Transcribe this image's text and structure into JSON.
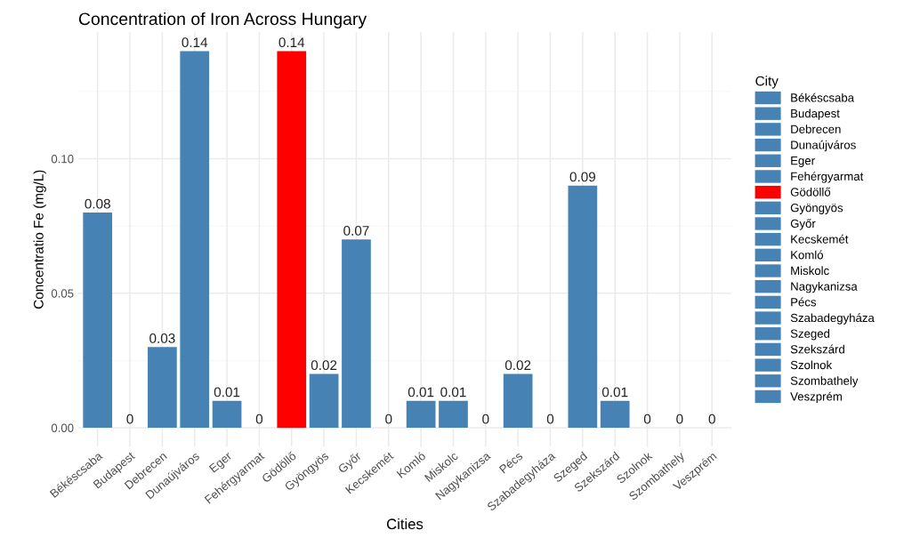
{
  "chart_data": {
    "type": "bar",
    "title": "Concentration of Iron Across Hungary",
    "xlabel": "Cities",
    "ylabel": "Concentratio Fe (mg/L)",
    "legend_title": "City",
    "categories": [
      "Békéscsaba",
      "Budapest",
      "Debrecen",
      "Dunaújváros",
      "Eger",
      "Fehérgyarmat",
      "Gödöllő",
      "Gyöngyös",
      "Győr",
      "Kecskemét",
      "Komló",
      "Miskolc",
      "Nagykanizsa",
      "Pécs",
      "Szabadegyháza",
      "Szeged",
      "Szekszárd",
      "Szolnok",
      "Szombathely",
      "Veszprém"
    ],
    "series": [
      {
        "name": "Békéscsaba",
        "color": "#4682b4",
        "values": [
          0.08,
          null,
          null,
          null,
          null,
          null,
          null,
          null,
          null,
          null,
          null,
          null,
          null,
          null,
          null,
          null,
          null,
          null,
          null,
          null
        ]
      },
      {
        "name": "Budapest",
        "color": "#4682b4",
        "values": [
          null,
          0,
          null,
          null,
          null,
          null,
          null,
          null,
          null,
          null,
          null,
          null,
          null,
          null,
          null,
          null,
          null,
          null,
          null,
          null
        ]
      },
      {
        "name": "Debrecen",
        "color": "#4682b4",
        "values": [
          null,
          null,
          0.03,
          null,
          null,
          null,
          null,
          null,
          null,
          null,
          null,
          null,
          null,
          null,
          null,
          null,
          null,
          null,
          null,
          null
        ]
      },
      {
        "name": "Dunaújváros",
        "color": "#4682b4",
        "values": [
          null,
          null,
          null,
          0.14,
          null,
          null,
          null,
          null,
          null,
          null,
          null,
          null,
          null,
          null,
          null,
          null,
          null,
          null,
          null,
          null
        ]
      },
      {
        "name": "Eger",
        "color": "#4682b4",
        "values": [
          null,
          null,
          null,
          null,
          0.01,
          null,
          null,
          null,
          null,
          null,
          null,
          null,
          null,
          null,
          null,
          null,
          null,
          null,
          null,
          null
        ]
      },
      {
        "name": "Fehérgyarmat",
        "color": "#4682b4",
        "values": [
          null,
          null,
          null,
          null,
          null,
          0,
          null,
          null,
          null,
          null,
          null,
          null,
          null,
          null,
          null,
          null,
          null,
          null,
          null,
          null
        ]
      },
      {
        "name": "Gödöllő",
        "color": "#ff0000",
        "values": [
          null,
          null,
          null,
          null,
          null,
          null,
          0.14,
          null,
          null,
          null,
          null,
          null,
          null,
          null,
          null,
          null,
          null,
          null,
          null,
          null
        ]
      },
      {
        "name": "Gyöngyös",
        "color": "#4682b4",
        "values": [
          null,
          null,
          null,
          null,
          null,
          null,
          null,
          0.02,
          null,
          null,
          null,
          null,
          null,
          null,
          null,
          null,
          null,
          null,
          null,
          null
        ]
      },
      {
        "name": "Győr",
        "color": "#4682b4",
        "values": [
          null,
          null,
          null,
          null,
          null,
          null,
          null,
          null,
          0.07,
          null,
          null,
          null,
          null,
          null,
          null,
          null,
          null,
          null,
          null,
          null
        ]
      },
      {
        "name": "Kecskemét",
        "color": "#4682b4",
        "values": [
          null,
          null,
          null,
          null,
          null,
          null,
          null,
          null,
          null,
          0,
          null,
          null,
          null,
          null,
          null,
          null,
          null,
          null,
          null,
          null
        ]
      },
      {
        "name": "Komló",
        "color": "#4682b4",
        "values": [
          null,
          null,
          null,
          null,
          null,
          null,
          null,
          null,
          null,
          null,
          0.01,
          null,
          null,
          null,
          null,
          null,
          null,
          null,
          null,
          null
        ]
      },
      {
        "name": "Miskolc",
        "color": "#4682b4",
        "values": [
          null,
          null,
          null,
          null,
          null,
          null,
          null,
          null,
          null,
          null,
          null,
          0.01,
          null,
          null,
          null,
          null,
          null,
          null,
          null,
          null
        ]
      },
      {
        "name": "Nagykanizsa",
        "color": "#4682b4",
        "values": [
          null,
          null,
          null,
          null,
          null,
          null,
          null,
          null,
          null,
          null,
          null,
          null,
          0,
          null,
          null,
          null,
          null,
          null,
          null,
          null
        ]
      },
      {
        "name": "Pécs",
        "color": "#4682b4",
        "values": [
          null,
          null,
          null,
          null,
          null,
          null,
          null,
          null,
          null,
          null,
          null,
          null,
          null,
          0.02,
          null,
          null,
          null,
          null,
          null,
          null
        ]
      },
      {
        "name": "Szabadegyháza",
        "color": "#4682b4",
        "values": [
          null,
          null,
          null,
          null,
          null,
          null,
          null,
          null,
          null,
          null,
          null,
          null,
          null,
          null,
          0,
          null,
          null,
          null,
          null,
          null
        ]
      },
      {
        "name": "Szeged",
        "color": "#4682b4",
        "values": [
          null,
          null,
          null,
          null,
          null,
          null,
          null,
          null,
          null,
          null,
          null,
          null,
          null,
          null,
          null,
          0.09,
          null,
          null,
          null,
          null
        ]
      },
      {
        "name": "Szekszárd",
        "color": "#4682b4",
        "values": [
          null,
          null,
          null,
          null,
          null,
          null,
          null,
          null,
          null,
          null,
          null,
          null,
          null,
          null,
          null,
          null,
          0.01,
          null,
          null,
          null
        ]
      },
      {
        "name": "Szolnok",
        "color": "#4682b4",
        "values": [
          null,
          null,
          null,
          null,
          null,
          null,
          null,
          null,
          null,
          null,
          null,
          null,
          null,
          null,
          null,
          null,
          null,
          0,
          null,
          null
        ]
      },
      {
        "name": "Szombathely",
        "color": "#4682b4",
        "values": [
          null,
          null,
          null,
          null,
          null,
          null,
          null,
          null,
          null,
          null,
          null,
          null,
          null,
          null,
          null,
          null,
          null,
          null,
          0,
          null
        ]
      },
      {
        "name": "Veszprém",
        "color": "#4682b4",
        "values": [
          null,
          null,
          null,
          null,
          null,
          null,
          null,
          null,
          null,
          null,
          null,
          null,
          null,
          null,
          null,
          null,
          null,
          null,
          null,
          0
        ]
      }
    ],
    "ylim": [
      -0.007,
      0.147
    ],
    "yticks": [
      {
        "value": 0,
        "label": "0.00"
      },
      {
        "value": 0.05,
        "label": "0.05"
      },
      {
        "value": 0.1,
        "label": "0.10"
      }
    ],
    "data_labels": true,
    "grid": true,
    "legend": "right"
  }
}
